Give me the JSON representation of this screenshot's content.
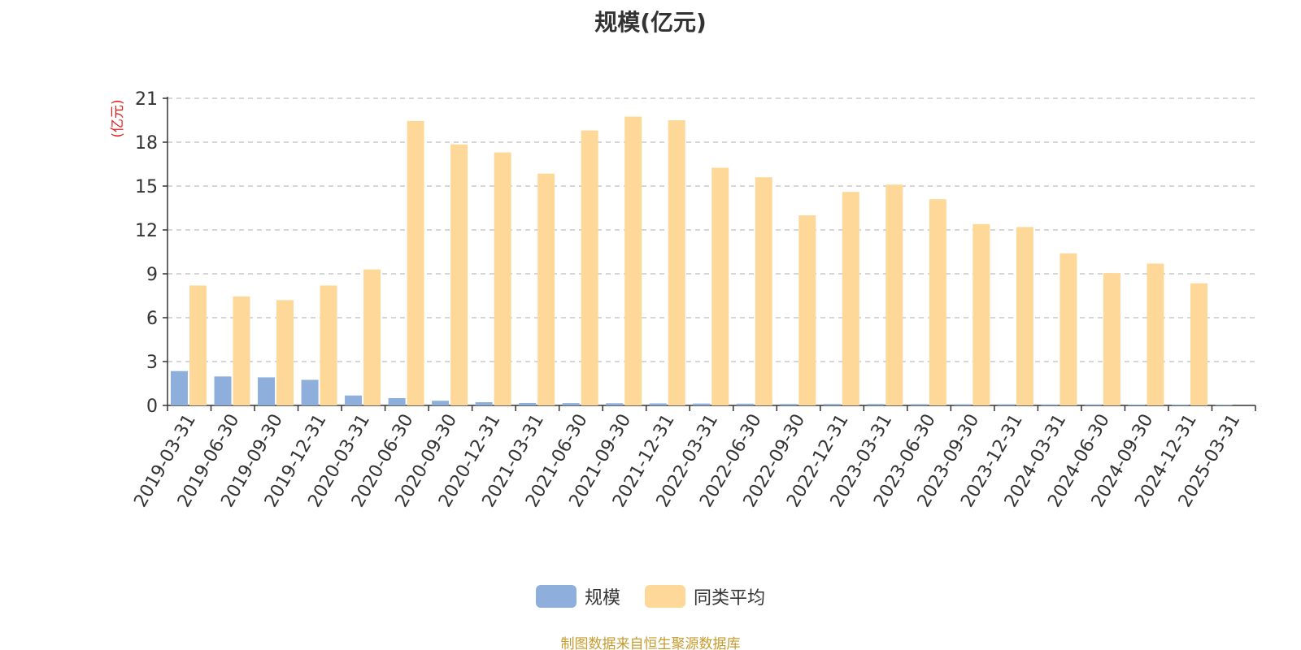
{
  "chart_data": {
    "type": "bar",
    "title": "规模(亿元)",
    "ylabel": "(亿元)",
    "xlabel": "",
    "ylim": [
      0,
      21
    ],
    "yticks": [
      0,
      3,
      6,
      9,
      12,
      15,
      18,
      21
    ],
    "grid": true,
    "legend_position": "bottom",
    "categories": [
      "2019-03-31",
      "2019-06-30",
      "2019-09-30",
      "2019-12-31",
      "2020-03-31",
      "2020-06-30",
      "2020-09-30",
      "2020-12-31",
      "2021-03-31",
      "2021-06-30",
      "2021-09-30",
      "2021-12-31",
      "2022-03-31",
      "2022-06-30",
      "2022-09-30",
      "2022-12-31",
      "2023-03-31",
      "2023-06-30",
      "2023-09-30",
      "2023-12-31",
      "2024-03-31",
      "2024-06-30",
      "2024-09-30",
      "2024-12-31",
      "2025-03-31"
    ],
    "series": [
      {
        "name": "规模",
        "color": "#8eaedb",
        "values": [
          2.35,
          1.98,
          1.92,
          1.75,
          0.68,
          0.5,
          0.32,
          0.22,
          0.17,
          0.16,
          0.15,
          0.14,
          0.13,
          0.12,
          0.1,
          0.1,
          0.1,
          0.09,
          0.08,
          0.08,
          0.07,
          0.07,
          0.06,
          0.06,
          0.05
        ]
      },
      {
        "name": "同类平均",
        "color": "#fed899",
        "values": [
          8.2,
          7.45,
          7.2,
          8.2,
          9.3,
          19.45,
          17.85,
          17.3,
          15.85,
          18.8,
          19.75,
          19.5,
          16.25,
          15.6,
          13.0,
          14.6,
          15.1,
          14.1,
          12.4,
          12.2,
          10.4,
          9.05,
          9.7,
          8.35,
          null
        ]
      }
    ]
  },
  "footer": {
    "source": "制图数据来自恒生聚源数据库"
  }
}
